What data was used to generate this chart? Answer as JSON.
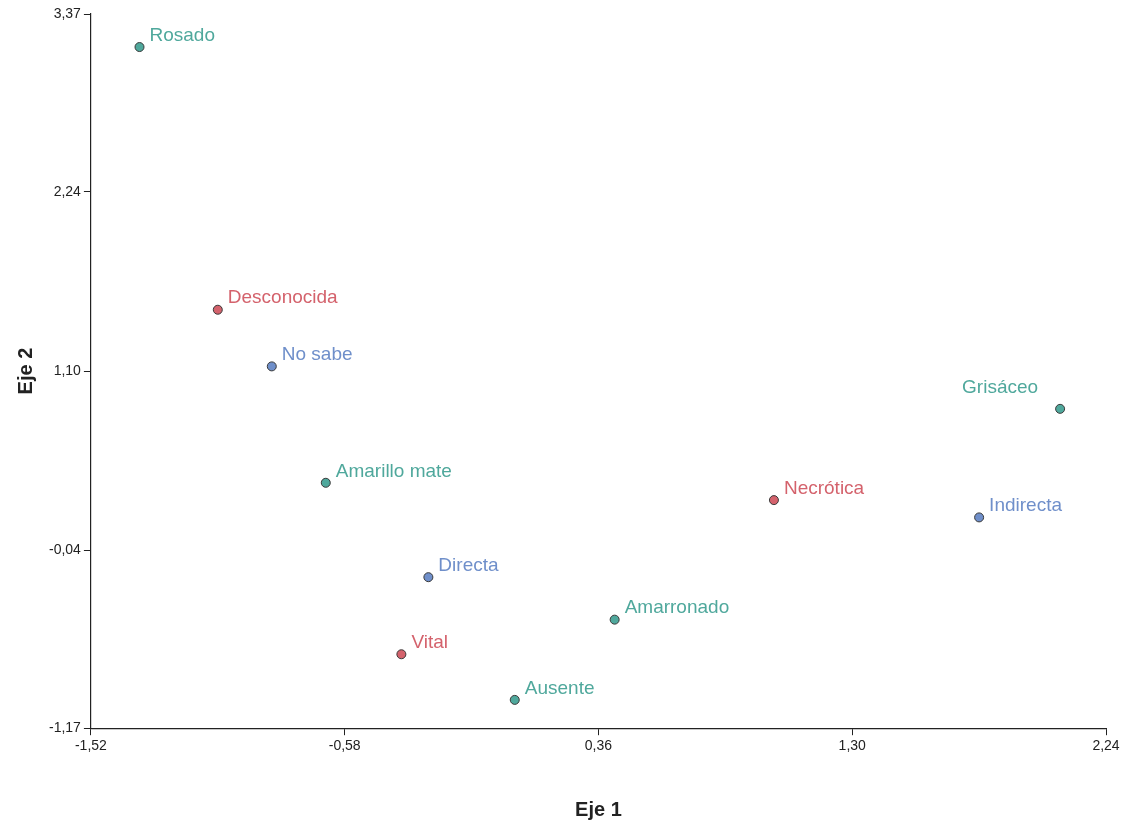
{
  "chart_data": {
    "type": "scatter",
    "xlabel": "Eje 1",
    "ylabel": "Eje 2",
    "grid": false,
    "legend": false,
    "marker": "circle",
    "xlim": [
      -1.52,
      2.24
    ],
    "ylim": [
      -1.17,
      3.37
    ],
    "xticks": [
      {
        "value": -1.52,
        "label": "-1,52"
      },
      {
        "value": -0.58,
        "label": "-0,58"
      },
      {
        "value": 0.36,
        "label": "0,36"
      },
      {
        "value": 1.3,
        "label": "1,30"
      },
      {
        "value": 2.24,
        "label": "2,24"
      }
    ],
    "yticks": [
      {
        "value": -1.17,
        "label": "-1,17"
      },
      {
        "value": -0.04,
        "label": "-0,04"
      },
      {
        "value": 1.1,
        "label": "1,10"
      },
      {
        "value": 2.24,
        "label": "2,24"
      },
      {
        "value": 3.37,
        "label": "3,37"
      }
    ],
    "series": [
      {
        "name": "Rosado",
        "color": "#4fa89c",
        "x": [
          -1.34
        ],
        "values": [
          3.16
        ]
      },
      {
        "name": "Desconocida",
        "color": "#d4626c",
        "x": [
          -1.05
        ],
        "values": [
          1.49
        ]
      },
      {
        "name": "No sabe",
        "color": "#6f8fca",
        "x": [
          -0.85
        ],
        "values": [
          1.13
        ]
      },
      {
        "name": "Amarillo mate",
        "color": "#4fa89c",
        "x": [
          -0.65
        ],
        "values": [
          0.39
        ]
      },
      {
        "name": "Directa",
        "color": "#6f8fca",
        "x": [
          -0.27
        ],
        "values": [
          -0.21
        ]
      },
      {
        "name": "Vital",
        "color": "#d4626c",
        "x": [
          -0.37
        ],
        "values": [
          -0.7
        ]
      },
      {
        "name": "Ausente",
        "color": "#4fa89c",
        "x": [
          0.05
        ],
        "values": [
          -0.99
        ]
      },
      {
        "name": "Amarronado",
        "color": "#4fa89c",
        "x": [
          0.42
        ],
        "values": [
          -0.48
        ]
      },
      {
        "name": "Necrótica",
        "color": "#d4626c",
        "x": [
          1.01
        ],
        "values": [
          0.28
        ]
      },
      {
        "name": "Indirecta",
        "color": "#6f8fca",
        "x": [
          1.77
        ],
        "values": [
          0.17
        ]
      },
      {
        "name": "Grisáceo",
        "color": "#4fa89c",
        "x": [
          2.07
        ],
        "values": [
          0.86
        ]
      }
    ]
  }
}
